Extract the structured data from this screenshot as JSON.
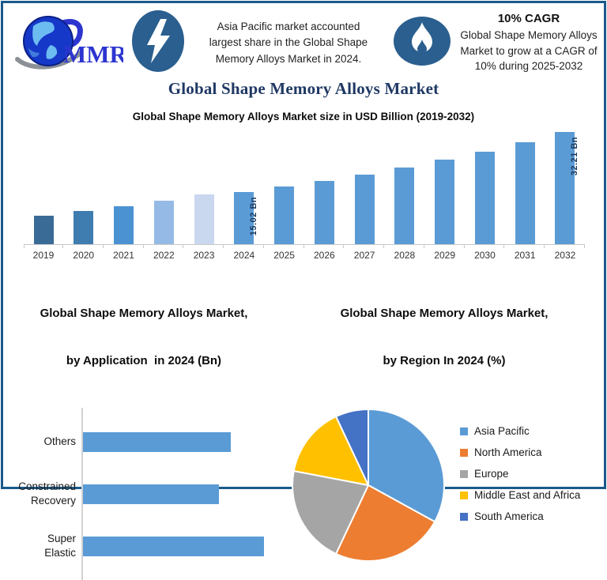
{
  "header": {
    "logo_text": "MMR",
    "highlight": {
      "icon": "lightning-icon",
      "lines": [
        "Asia Pacific market accounted",
        "largest share in the Global Shape",
        "Memory Alloys Market in 2024."
      ]
    },
    "cagr": {
      "icon": "flame-icon",
      "title": "10% CAGR",
      "lines": [
        "Global Shape Memory Alloys",
        "Market to grow at a CAGR of",
        "10% during 2025-2032"
      ]
    }
  },
  "page_title": "Global Shape Memory Alloys Market",
  "colors": {
    "frame_border": "#1a5a8a",
    "icon_badge": "#2a5f8f",
    "accent_navy": "#1f3864",
    "primary_bar": "#5b9bd5"
  },
  "chart_data": [
    {
      "type": "bar",
      "title": "Global Shape Memory Alloys Market size in USD Billion (2019-2032)",
      "categories": [
        "2019",
        "2020",
        "2021",
        "2022",
        "2023",
        "2024",
        "2025",
        "2026",
        "2027",
        "2028",
        "2029",
        "2030",
        "2031",
        "2032"
      ],
      "values": [
        8.2,
        9.5,
        10.9,
        12.4,
        14.3,
        15.02,
        16.52,
        18.17,
        19.99,
        21.99,
        24.19,
        26.61,
        29.27,
        32.21
      ],
      "data_labels": {
        "2024": "15.02 Bn",
        "2032": "32.21 Bn"
      },
      "bar_colors": [
        "#3a6b97",
        "#3f7cb0",
        "#4b92d3",
        "#95bae5",
        "#cad8ef",
        "#5b9bd5",
        "#5b9bd5",
        "#5b9bd5",
        "#5b9bd5",
        "#5b9bd5",
        "#5b9bd5",
        "#5b9bd5",
        "#5b9bd5",
        "#5b9bd5"
      ],
      "xlabel": "",
      "ylabel": "",
      "ylim": [
        0,
        34
      ],
      "grid": false,
      "legend": false
    },
    {
      "type": "bar",
      "orientation": "horizontal",
      "title_lines": [
        "Global Shape Memory Alloys Market,",
        "by Application  in 2024 (Bn)"
      ],
      "categories": [
        "Others",
        "Constrained\nRecovery",
        "Super\nElastic"
      ],
      "values": [
        4.9,
        4.5,
        6.0
      ],
      "xlim": [
        0,
        6.6
      ],
      "bar_color": "#5b9bd5",
      "grid": false,
      "legend": false
    },
    {
      "type": "pie",
      "title_lines": [
        "Global Shape Memory Alloys Market,",
        "by Region In 2024 (%)"
      ],
      "labels": [
        "Asia Pacific",
        "North America",
        "Europe",
        "Middle East and Africa",
        "South America"
      ],
      "values": [
        33,
        24,
        21,
        15,
        7
      ],
      "colors": [
        "#5b9bd5",
        "#ed7d31",
        "#a5a5a5",
        "#ffc000",
        "#4472c4"
      ],
      "legend_position": "right",
      "start_angle_deg": 0
    }
  ]
}
